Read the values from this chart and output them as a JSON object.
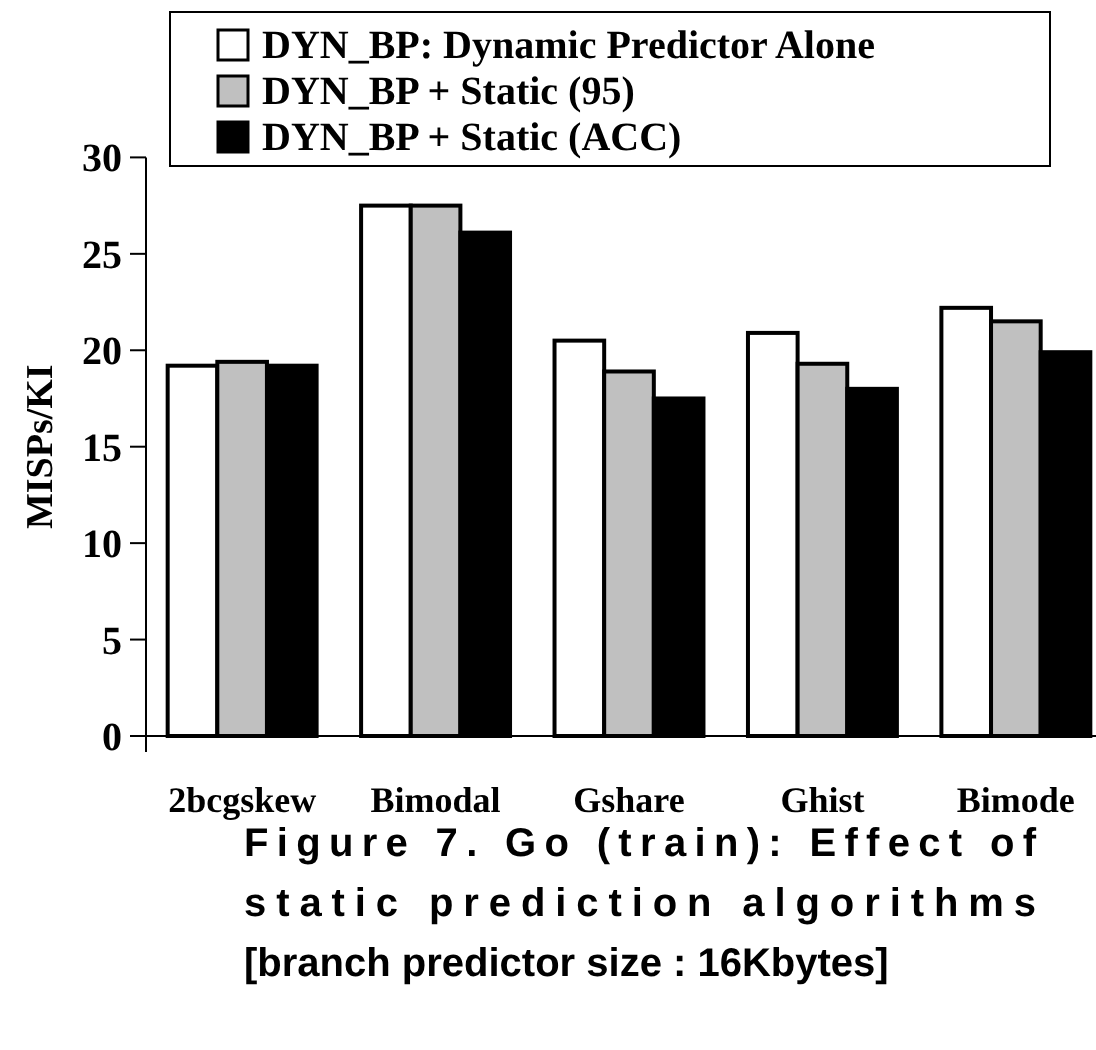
{
  "chart_data": {
    "type": "bar",
    "title": "Figure 7. Go (train): Effect of static prediction algorithms [branch predictor size : 16Kbytes]",
    "ylabel": "MISPs/KI",
    "categories": [
      "2bcgskew",
      "Bimodal",
      "Gshare",
      "Ghist",
      "Bimode"
    ],
    "series": [
      {
        "name": "DYN_BP: Dynamic Predictor Alone",
        "color": "#ffffff",
        "values": [
          19.2,
          27.5,
          20.5,
          20.9,
          22.2
        ]
      },
      {
        "name": "DYN_BP + Static (95)",
        "color": "#c0c0c0",
        "values": [
          19.4,
          27.5,
          18.9,
          19.3,
          21.5
        ]
      },
      {
        "name": "DYN_BP + Static (ACC)",
        "color": "#000000",
        "values": [
          19.2,
          26.1,
          17.5,
          18.0,
          19.9
        ]
      }
    ],
    "ylim": [
      0,
      30
    ],
    "yticks": [
      0,
      5,
      10,
      15,
      20,
      25,
      30
    ],
    "grid": false,
    "legend": "top"
  }
}
